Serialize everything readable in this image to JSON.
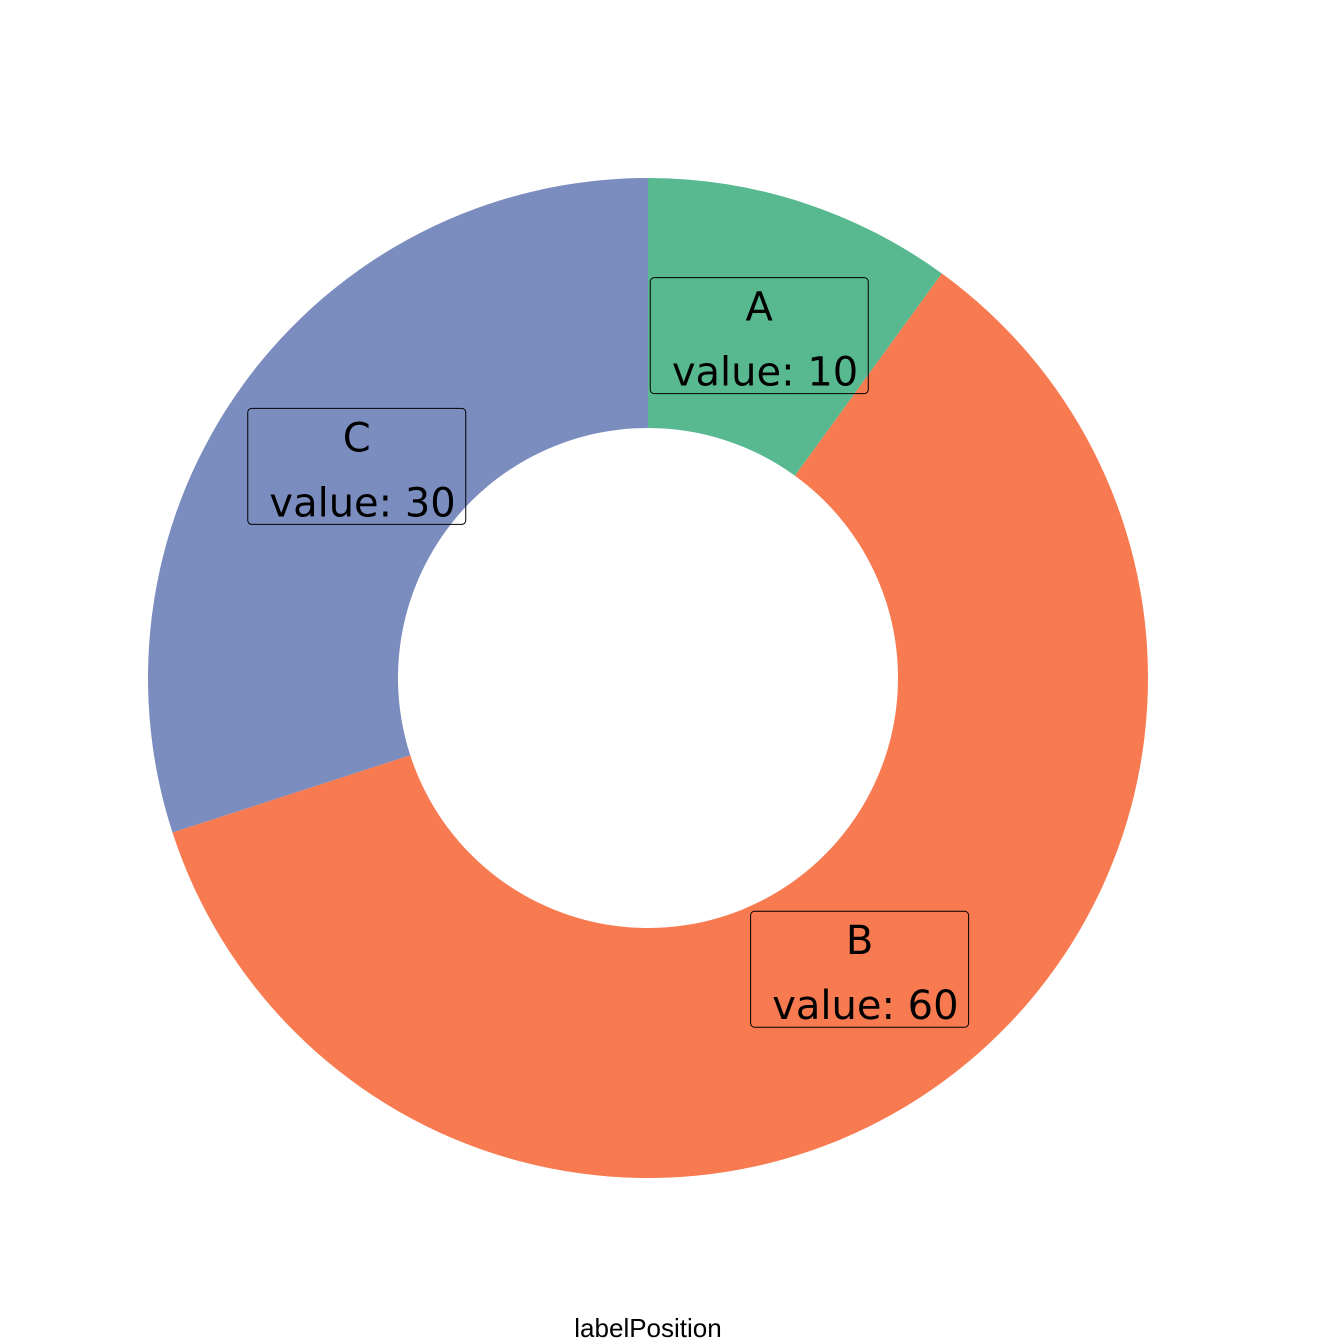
{
  "chart_data": {
    "type": "pie",
    "donut": true,
    "slices": [
      {
        "category": "A",
        "value": 10,
        "value_label": "value: 10",
        "color": "#58b991"
      },
      {
        "category": "B",
        "value": 60,
        "value_label": "value: 60",
        "color": "#f87a50"
      },
      {
        "category": "C",
        "value": 30,
        "value_label": "value: 30",
        "color": "#7b8dbf"
      }
    ],
    "xlabel": "labelPosition",
    "direction": "clockwise",
    "start_angle": "12 o'clock",
    "legend": "none"
  }
}
